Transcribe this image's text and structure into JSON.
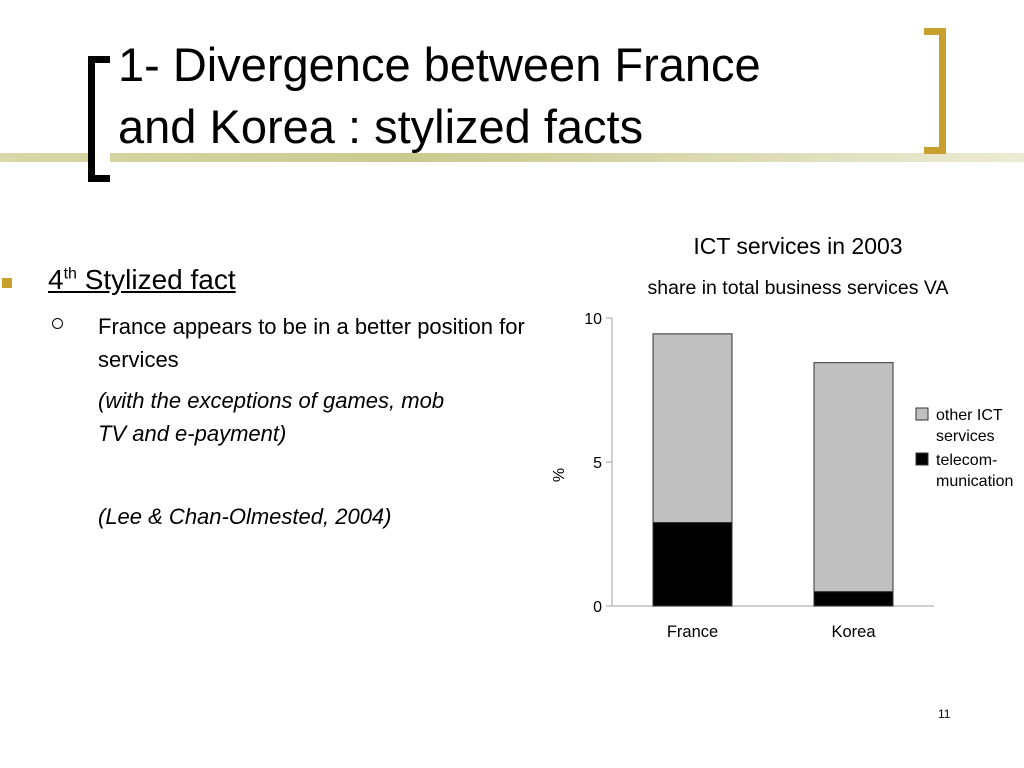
{
  "slide": {
    "title_line1": "1- Divergence between France",
    "title_line2": "and Korea : stylized facts",
    "heading_main": "4",
    "heading_sup": "th",
    "heading_rest": " Stylized fact",
    "point": "France appears to be in a better position for services",
    "note_line1": "(with the exceptions of games, mob",
    "note_line2": "TV and e-payment)",
    "citation": "(Lee & Chan-Olmested, 2004)",
    "page_number": "11"
  },
  "chart_data": {
    "type": "bar",
    "stacked": true,
    "title": "ICT services in 2003",
    "subtitle": "share in total business services VA",
    "xlabel": "",
    "ylabel": "%",
    "categories": [
      "France",
      "Korea"
    ],
    "ylim": [
      0,
      10
    ],
    "yticks": [
      "0",
      "5",
      "10"
    ],
    "legend_position": "right",
    "series": [
      {
        "name": "telecom-munication",
        "values": [
          2.9,
          0.5
        ],
        "color": "#000000"
      },
      {
        "name": "other ICT services",
        "values": [
          6.55,
          7.95
        ],
        "color": "#c0c0c0"
      }
    ],
    "legend": [
      {
        "lines": [
          "other ICT",
          "services"
        ],
        "color": "#c0c0c0"
      },
      {
        "lines": [
          "telecom-",
          "munication"
        ],
        "color": "#000000"
      }
    ]
  }
}
